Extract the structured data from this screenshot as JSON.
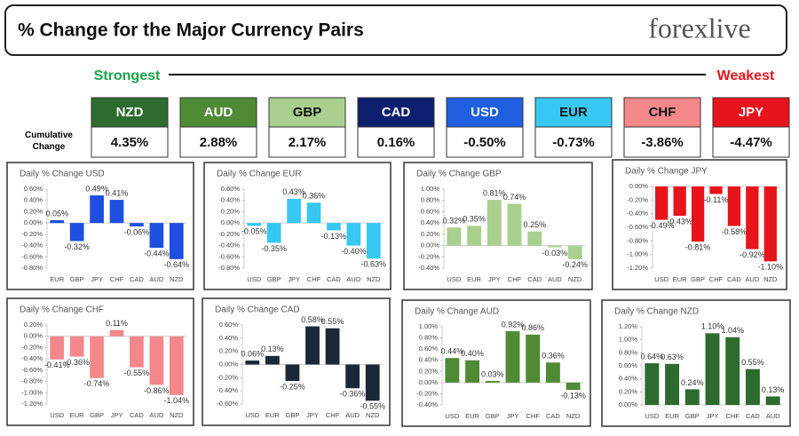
{
  "header": {
    "title": "% Change for the Major Currency Pairs",
    "logo": "forexlive"
  },
  "summary": {
    "strongest": "Strongest",
    "weakest": "Weakest",
    "label": "Cumulative Change",
    "pairs": [
      {
        "name": "NZD",
        "change": "4.35%",
        "color": "#2e6b2e"
      },
      {
        "name": "AUD",
        "change": "2.88%",
        "color": "#4f8a35"
      },
      {
        "name": "GBP",
        "change": "2.17%",
        "color": "#a9d08e"
      },
      {
        "name": "CAD",
        "change": "0.16%",
        "color": "#0d1f6e"
      },
      {
        "name": "USD",
        "change": "-0.50%",
        "color": "#1f5fe0"
      },
      {
        "name": "EUR",
        "change": "-0.73%",
        "color": "#36c8f2"
      },
      {
        "name": "CHF",
        "change": "-3.86%",
        "color": "#f4878a"
      },
      {
        "name": "JPY",
        "change": "-4.47%",
        "color": "#e8141b"
      }
    ]
  },
  "chart_data": [
    {
      "type": "bar",
      "title": "Daily % Change USD",
      "color": "#1f4fe0",
      "categories": [
        "EUR",
        "GBP",
        "JPY",
        "CHF",
        "CAD",
        "AUD",
        "NZD"
      ],
      "values": [
        0.05,
        -0.32,
        0.49,
        0.41,
        -0.06,
        -0.44,
        -0.64
      ],
      "value_labels": [
        "0.05%",
        "-0.32%",
        "0.49%",
        "0.41%",
        "-0.06%",
        "-0.44%",
        "-0.64%"
      ],
      "ylim": [
        -0.8,
        0.6
      ],
      "yticks": [
        {
          "value": 0.6,
          "label": "0.60%"
        },
        {
          "value": 0.4,
          "label": "0.40%"
        },
        {
          "value": 0.2,
          "label": "0.20%"
        },
        {
          "value": 0,
          "label": "0.00%"
        },
        {
          "value": -0.2,
          "label": "-0.20%"
        },
        {
          "value": -0.4,
          "label": "-0.40%"
        },
        {
          "value": -0.6,
          "label": "-0.60%"
        },
        {
          "value": -0.8,
          "label": "-0.80%"
        }
      ]
    },
    {
      "type": "bar",
      "title": "Daily % Change EUR",
      "color": "#36c8f2",
      "categories": [
        "USD",
        "GBP",
        "JPY",
        "CHF",
        "CAD",
        "AUD",
        "NZD"
      ],
      "values": [
        -0.05,
        -0.35,
        0.43,
        0.36,
        -0.13,
        -0.4,
        -0.63
      ],
      "value_labels": [
        "-0.05%",
        "-0.35%",
        "0.43%",
        "0.36%",
        "-0.13%",
        "-0.40%",
        "-0.63%"
      ],
      "ylim": [
        -0.8,
        0.6
      ],
      "yticks": [
        {
          "value": 0.6,
          "label": "0.60%"
        },
        {
          "value": 0.4,
          "label": "0.40%"
        },
        {
          "value": 0.2,
          "label": "0.20%"
        },
        {
          "value": 0,
          "label": "0.00%"
        },
        {
          "value": -0.2,
          "label": "-0.20%"
        },
        {
          "value": -0.4,
          "label": "-0.40%"
        },
        {
          "value": -0.6,
          "label": "-0.60%"
        },
        {
          "value": -0.8,
          "label": "-0.80%"
        }
      ]
    },
    {
      "type": "bar",
      "title": "Daily % Change GBP",
      "color": "#a9d08e",
      "categories": [
        "USD",
        "EUR",
        "JPY",
        "CHF",
        "CAD",
        "AUD",
        "NZD"
      ],
      "values": [
        0.32,
        0.35,
        0.81,
        0.74,
        0.25,
        -0.03,
        -0.24
      ],
      "value_labels": [
        "0.32%",
        "0.35%",
        "0.81%",
        "0.74%",
        "0.25%",
        "-0.03%",
        "-0.24%"
      ],
      "ylim": [
        -0.4,
        1.0
      ],
      "yticks": [
        {
          "value": 1.0,
          "label": "1.00%"
        },
        {
          "value": 0.8,
          "label": "0.80%"
        },
        {
          "value": 0.6,
          "label": "0.60%"
        },
        {
          "value": 0.4,
          "label": "0.40%"
        },
        {
          "value": 0.2,
          "label": "0.20%"
        },
        {
          "value": 0,
          "label": "0.00%"
        },
        {
          "value": -0.2,
          "label": "-0.20%"
        },
        {
          "value": -0.4,
          "label": "-0.40%"
        }
      ]
    },
    {
      "type": "bar",
      "title": "Daily % Change JPY",
      "color": "#e8141b",
      "categories": [
        "USD",
        "EUR",
        "GBP",
        "CHF",
        "CAD",
        "AUD",
        "NZD"
      ],
      "values": [
        -0.49,
        -0.43,
        -0.81,
        -0.11,
        -0.58,
        -0.92,
        -1.1
      ],
      "value_labels": [
        "-0.49%",
        "-0.43%",
        "-0.81%",
        "-0.11%",
        "-0.58%",
        "-0.92%",
        "-1.10%"
      ],
      "ylim": [
        -1.2,
        0
      ],
      "yticks": [
        {
          "value": 0,
          "label": "0.00%"
        },
        {
          "value": -0.2,
          "label": "-0.20%"
        },
        {
          "value": -0.4,
          "label": "-0.40%"
        },
        {
          "value": -0.6,
          "label": "-0.60%"
        },
        {
          "value": -0.8,
          "label": "-0.80%"
        },
        {
          "value": -1.0,
          "label": "-1.00%"
        },
        {
          "value": -1.2,
          "label": "-1.20%"
        }
      ]
    },
    {
      "type": "bar",
      "title": "Daily % Change CHF",
      "color": "#f4878a",
      "categories": [
        "USD",
        "EUR",
        "GBP",
        "JPY",
        "CAD",
        "AUD",
        "NZD"
      ],
      "values": [
        -0.41,
        -0.36,
        -0.74,
        0.11,
        -0.55,
        -0.86,
        -1.04
      ],
      "value_labels": [
        "-0.41%",
        "-0.36%",
        "-0.74%",
        "0.11%",
        "-0.55%",
        "-0.86%",
        "-1.04%"
      ],
      "ylim": [
        -1.2,
        0.2
      ],
      "yticks": [
        {
          "value": 0.2,
          "label": "0.20%"
        },
        {
          "value": 0,
          "label": "0.00%"
        },
        {
          "value": -0.2,
          "label": "-0.20%"
        },
        {
          "value": -0.4,
          "label": "-0.40%"
        },
        {
          "value": -0.6,
          "label": "-0.60%"
        },
        {
          "value": -0.8,
          "label": "-0.80%"
        },
        {
          "value": -1.0,
          "label": "-1.00%"
        },
        {
          "value": -1.2,
          "label": "-1.20%"
        }
      ]
    },
    {
      "type": "bar",
      "title": "Daily % Change CAD",
      "color": "#1b2838",
      "categories": [
        "USD",
        "EUR",
        "GBP",
        "JPY",
        "CHF",
        "AUD",
        "NZD"
      ],
      "values": [
        0.06,
        0.13,
        -0.25,
        0.58,
        0.55,
        -0.36,
        -0.55
      ],
      "value_labels": [
        "0.06%",
        "0.13%",
        "-0.25%",
        "0.58%",
        "0.55%",
        "-0.36%",
        "-0.55%"
      ],
      "ylim": [
        -0.6,
        0.6
      ],
      "yticks": [
        {
          "value": 0.6,
          "label": "0.60%"
        },
        {
          "value": 0.4,
          "label": "0.40%"
        },
        {
          "value": 0.2,
          "label": "0.20%"
        },
        {
          "value": 0,
          "label": "0.00%"
        },
        {
          "value": -0.2,
          "label": "-0.20%"
        },
        {
          "value": -0.4,
          "label": "-0.40%"
        },
        {
          "value": -0.6,
          "label": "-0.60%"
        }
      ]
    },
    {
      "type": "bar",
      "title": "Daily % Change AUD",
      "color": "#4f8a35",
      "categories": [
        "USD",
        "EUR",
        "GBP",
        "JPY",
        "CHF",
        "CAD",
        "NZD"
      ],
      "values": [
        0.44,
        0.4,
        0.03,
        0.92,
        0.86,
        0.36,
        -0.13
      ],
      "value_labels": [
        "0.44%",
        "0.40%",
        "0.03%",
        "0.92%",
        "0.86%",
        "0.36%",
        "-0.13%"
      ],
      "ylim": [
        -0.4,
        1.0
      ],
      "yticks": [
        {
          "value": 1.0,
          "label": "1.00%"
        },
        {
          "value": 0.8,
          "label": "0.80%"
        },
        {
          "value": 0.6,
          "label": "0.60%"
        },
        {
          "value": 0.4,
          "label": "0.40%"
        },
        {
          "value": 0.2,
          "label": "0.20%"
        },
        {
          "value": 0,
          "label": "0.00%"
        },
        {
          "value": -0.2,
          "label": "-0.20%"
        },
        {
          "value": -0.4,
          "label": "-0.40%"
        }
      ]
    },
    {
      "type": "bar",
      "title": "Daily % Change NZD",
      "color": "#2e6b2e",
      "categories": [
        "USD",
        "EUR",
        "GBP",
        "JPY",
        "CHF",
        "CAD",
        "AUD"
      ],
      "values": [
        0.64,
        0.63,
        0.24,
        1.1,
        1.04,
        0.55,
        0.13
      ],
      "value_labels": [
        "0.64%",
        "0.63%",
        "0.24%",
        "1.10%",
        "1.04%",
        "0.55%",
        "0.13%"
      ],
      "ylim": [
        0,
        1.2
      ],
      "yticks": [
        {
          "value": 1.2,
          "label": "1.20%"
        },
        {
          "value": 1.0,
          "label": "1.00%"
        },
        {
          "value": 0.8,
          "label": "0.80%"
        },
        {
          "value": 0.6,
          "label": "0.60%"
        },
        {
          "value": 0.4,
          "label": "0.40%"
        },
        {
          "value": 0.2,
          "label": "0.20%"
        },
        {
          "value": 0,
          "label": "0.00%"
        }
      ]
    }
  ]
}
